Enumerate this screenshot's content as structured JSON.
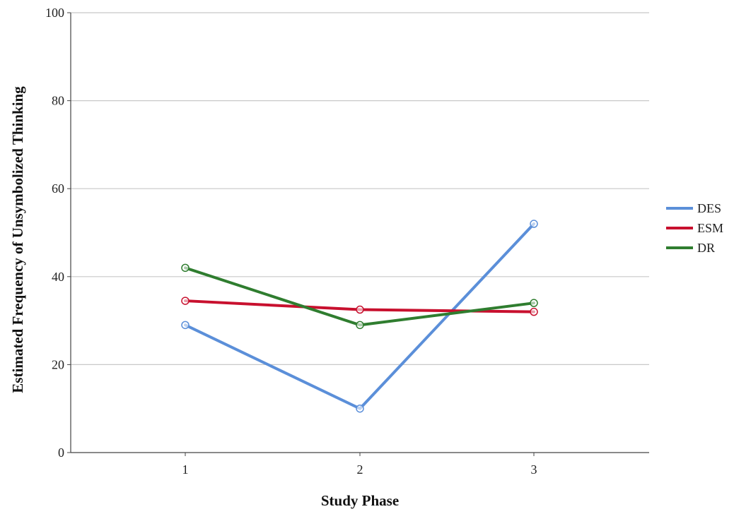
{
  "chart_data": {
    "type": "line",
    "title": "",
    "xlabel": "Study Phase",
    "ylabel": "Estimated Frequency of Unsymbolized Thinking",
    "categories": [
      "1",
      "2",
      "3"
    ],
    "ylim": [
      0,
      100
    ],
    "yticks": [
      0,
      20,
      40,
      60,
      80,
      100
    ],
    "grid": "horizontal",
    "legend_position": "right",
    "series": [
      {
        "name": "DES",
        "color": "#5b8fd9",
        "values": [
          29,
          10,
          52
        ]
      },
      {
        "name": "ESM",
        "color": "#c8102e",
        "values": [
          34.5,
          32.5,
          32
        ]
      },
      {
        "name": "DR",
        "color": "#2f7d2f",
        "values": [
          42,
          29,
          34
        ]
      }
    ]
  }
}
